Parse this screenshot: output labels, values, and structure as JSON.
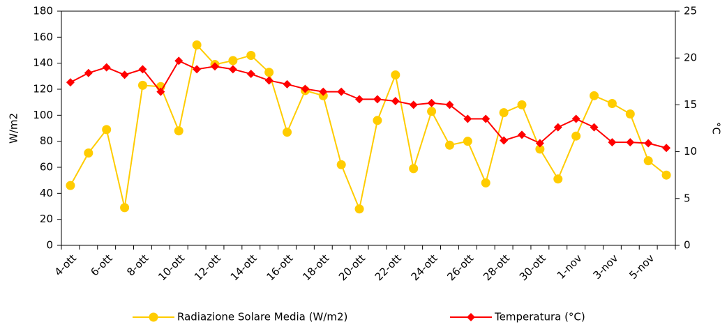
{
  "chart_data": {
    "type": "line",
    "y_label": "W/m2",
    "y2_label": "°C",
    "categories": [
      "4-ott",
      null,
      "6-ott",
      null,
      "8-ott",
      null,
      "10-ott",
      null,
      "12-ott",
      null,
      "14-ott",
      null,
      "16-ott",
      null,
      "18-ott",
      null,
      "20-ott",
      null,
      "22-ott",
      null,
      "24-ott",
      null,
      "26-ott",
      null,
      "28-ott",
      null,
      "30-ott",
      null,
      "1-nov",
      null,
      "3-nov",
      null,
      "5-nov",
      null
    ],
    "series": [
      {
        "name": "Radiazione Solare Media (W/m2)",
        "color": "#ffcc00",
        "marker": "circle",
        "values": [
          46,
          71,
          89,
          29,
          123,
          122,
          88,
          154,
          139,
          142,
          146,
          133,
          87,
          119,
          115,
          62,
          28,
          96,
          131,
          59,
          103,
          77,
          80,
          48,
          102,
          108,
          74,
          51,
          84,
          115,
          109,
          101,
          65,
          54
        ]
      },
      {
        "name": "Temperatura (°C)",
        "color": "#ff0000",
        "marker": "diamond",
        "axis": "y2",
        "values": [
          17.4,
          18.4,
          19.0,
          18.2,
          18.8,
          16.4,
          19.7,
          18.8,
          19.1,
          18.8,
          18.3,
          17.6,
          17.2,
          16.7,
          16.4,
          16.4,
          15.6,
          15.6,
          15.4,
          15.0,
          15.2,
          15.0,
          13.5,
          13.5,
          11.2,
          11.8,
          10.9,
          12.6,
          13.5,
          12.6,
          11.0,
          11.0,
          10.9,
          10.4
        ]
      }
    ],
    "ylim": [
      0,
      180
    ],
    "yticks": [
      0,
      20,
      40,
      60,
      80,
      100,
      120,
      140,
      160,
      180
    ],
    "y2lim": [
      0,
      25
    ],
    "y2ticks": [
      0,
      5,
      10,
      15,
      20,
      25
    ],
    "grid": false,
    "legend": "bottom"
  }
}
